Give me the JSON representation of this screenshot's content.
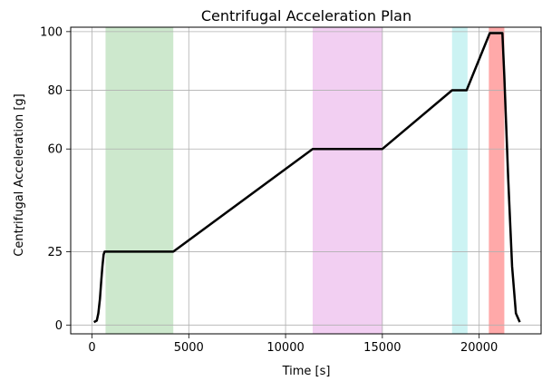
{
  "chart_data": {
    "type": "line",
    "title": "Centrifugal Acceleration Plan",
    "xlabel": "Time [s]",
    "ylabel": "Centrifugal Acceleration [g]",
    "xlim": [
      -1100,
      23200
    ],
    "ylim": [
      -3,
      101.5
    ],
    "xticks": [
      0,
      5000,
      10000,
      15000,
      20000
    ],
    "yticks": [
      0,
      25,
      60,
      80,
      100
    ],
    "grid": true,
    "series": [
      {
        "color": "#000000",
        "x": [
          100,
          250,
          330,
          410,
          480,
          540,
          600,
          650,
          700,
          4200,
          11400,
          15000,
          18600,
          19350,
          20550,
          21200,
          21300,
          21500,
          21700,
          21900,
          22100
        ],
        "y": [
          1,
          1.5,
          4,
          9,
          15,
          20,
          24,
          25,
          25,
          25,
          60,
          60,
          80,
          80,
          99.5,
          99.5,
          85,
          50,
          20,
          4,
          1
        ]
      }
    ],
    "bands": [
      {
        "x0": 700,
        "x1": 4200,
        "color": "#2ca02c",
        "opacity": 0.24
      },
      {
        "x0": 11400,
        "x1": 15000,
        "color": "#d55fd5",
        "opacity": 0.3
      },
      {
        "x0": 18600,
        "x1": 19400,
        "color": "#56d7d7",
        "opacity": 0.3
      },
      {
        "x0": 20500,
        "x1": 21300,
        "color": "#ff5a5a",
        "opacity": 0.52
      }
    ]
  }
}
